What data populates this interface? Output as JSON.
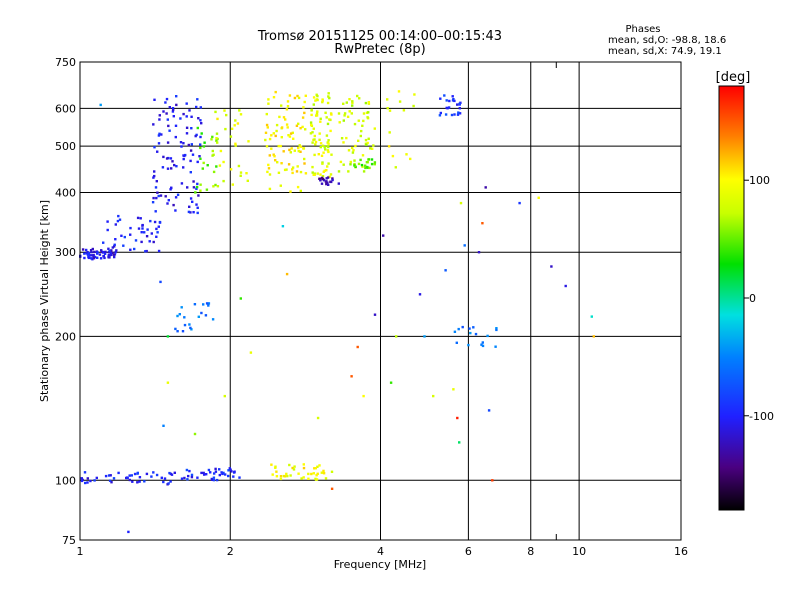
{
  "chart_data": {
    "type": "scatter",
    "title_line1": "Tromsø 20151125 00:14:00–00:15:43",
    "title_line2": "RwPretec (8p)",
    "xlabel": "Frequency [MHz]",
    "ylabel": "Stationary phase Virtual Height [km]",
    "xscale": "log",
    "yscale": "log",
    "xlim": [
      1,
      16
    ],
    "ylim": [
      75,
      750
    ],
    "xticks": [
      1,
      2,
      4,
      6,
      8,
      10,
      16
    ],
    "xtick_labels": [
      "1",
      "2",
      "4",
      "6",
      "8",
      "10",
      "16"
    ],
    "x_minor_ticks": [
      9
    ],
    "yticks": [
      75,
      100,
      200,
      300,
      400,
      500,
      600,
      750
    ],
    "ytick_labels": [
      "75",
      "100",
      "200",
      "300",
      "400",
      "500",
      "600",
      "750"
    ],
    "grid": true,
    "stats": {
      "heading": "Phases",
      "line_o": "mean, sd,O: -98.8, 18.6",
      "line_x": "mean, sd,X:  74.9, 19.1"
    },
    "colorbar": {
      "label": "[deg]",
      "range": [
        -180,
        180
      ],
      "ticks": [
        100,
        0,
        -100
      ],
      "tick_labels": [
        "100",
        "0",
        "-100"
      ]
    },
    "clusters": [
      {
        "f": [
          1.0,
          1.18
        ],
        "h": [
          290,
          305
        ],
        "phase": -110,
        "n": 60
      },
      {
        "f": [
          1.1,
          1.45
        ],
        "h": [
          300,
          360
        ],
        "phase": -100,
        "n": 45
      },
      {
        "f": [
          1.4,
          1.75
        ],
        "h": [
          360,
          640
        ],
        "phase": -105,
        "n": 110
      },
      {
        "f": [
          1.7,
          1.9
        ],
        "h": [
          400,
          560
        ],
        "phase": 50,
        "n": 25
      },
      {
        "f": [
          1.85,
          2.2
        ],
        "h": [
          410,
          620
        ],
        "phase": 90,
        "n": 30
      },
      {
        "f": [
          2.35,
          2.85
        ],
        "h": [
          400,
          650
        ],
        "phase": 100,
        "n": 90
      },
      {
        "f": [
          2.9,
          3.2
        ],
        "h": [
          430,
          650
        ],
        "phase": 85,
        "n": 80
      },
      {
        "f": [
          3.0,
          3.3
        ],
        "h": [
          415,
          430
        ],
        "phase": -130,
        "n": 20
      },
      {
        "f": [
          3.3,
          3.9
        ],
        "h": [
          440,
          640
        ],
        "phase": 80,
        "n": 60
      },
      {
        "f": [
          3.5,
          3.9
        ],
        "h": [
          450,
          470
        ],
        "phase": 50,
        "n": 20
      },
      {
        "f": [
          4.1,
          4.7
        ],
        "h": [
          450,
          660
        ],
        "phase": 90,
        "n": 14
      },
      {
        "f": [
          5.2,
          5.8
        ],
        "h": [
          580,
          640
        ],
        "phase": -90,
        "n": 25
      },
      {
        "f": [
          1.0,
          1.6
        ],
        "h": [
          98,
          104
        ],
        "phase": -100,
        "n": 45
      },
      {
        "f": [
          1.6,
          2.1
        ],
        "h": [
          100,
          106
        ],
        "phase": -95,
        "n": 40
      },
      {
        "f": [
          2.4,
          3.2
        ],
        "h": [
          100,
          108
        ],
        "phase": 95,
        "n": 40
      },
      {
        "f": [
          1.55,
          1.9
        ],
        "h": [
          205,
          235
        ],
        "phase": -60,
        "n": 20
      },
      {
        "f": [
          5.6,
          6.9
        ],
        "h": [
          190,
          210
        ],
        "phase": -60,
        "n": 16
      }
    ],
    "scattered": [
      {
        "f": 1.1,
        "h": 610,
        "phase": -40
      },
      {
        "f": 1.45,
        "h": 260,
        "phase": -80
      },
      {
        "f": 1.5,
        "h": 200,
        "phase": 20
      },
      {
        "f": 1.5,
        "h": 160,
        "phase": 90
      },
      {
        "f": 1.47,
        "h": 130,
        "phase": -50
      },
      {
        "f": 1.25,
        "h": 78,
        "phase": -100
      },
      {
        "f": 1.7,
        "h": 125,
        "phase": 60
      },
      {
        "f": 1.95,
        "h": 150,
        "phase": 80
      },
      {
        "f": 2.1,
        "h": 240,
        "phase": 40
      },
      {
        "f": 2.2,
        "h": 185,
        "phase": 90
      },
      {
        "f": 2.6,
        "h": 270,
        "phase": 120
      },
      {
        "f": 2.55,
        "h": 340,
        "phase": -20
      },
      {
        "f": 3.0,
        "h": 135,
        "phase": 80
      },
      {
        "f": 3.2,
        "h": 96,
        "phase": 150
      },
      {
        "f": 3.5,
        "h": 165,
        "phase": 150
      },
      {
        "f": 3.6,
        "h": 190,
        "phase": 150
      },
      {
        "f": 3.7,
        "h": 150,
        "phase": 100
      },
      {
        "f": 3.9,
        "h": 222,
        "phase": -120
      },
      {
        "f": 4.05,
        "h": 325,
        "phase": -130
      },
      {
        "f": 4.2,
        "h": 160,
        "phase": 40
      },
      {
        "f": 4.3,
        "h": 200,
        "phase": 70
      },
      {
        "f": 4.8,
        "h": 245,
        "phase": -110
      },
      {
        "f": 4.9,
        "h": 200,
        "phase": -40
      },
      {
        "f": 5.1,
        "h": 150,
        "phase": 80
      },
      {
        "f": 5.4,
        "h": 275,
        "phase": -70
      },
      {
        "f": 5.6,
        "h": 155,
        "phase": 90
      },
      {
        "f": 5.7,
        "h": 135,
        "phase": 170
      },
      {
        "f": 5.75,
        "h": 120,
        "phase": 10
      },
      {
        "f": 5.8,
        "h": 380,
        "phase": 80
      },
      {
        "f": 5.9,
        "h": 310,
        "phase": -60
      },
      {
        "f": 6.3,
        "h": 300,
        "phase": -120
      },
      {
        "f": 6.4,
        "h": 345,
        "phase": 150
      },
      {
        "f": 6.5,
        "h": 410,
        "phase": -130
      },
      {
        "f": 6.6,
        "h": 140,
        "phase": -80
      },
      {
        "f": 6.7,
        "h": 100,
        "phase": 160
      },
      {
        "f": 7.6,
        "h": 380,
        "phase": -90
      },
      {
        "f": 8.3,
        "h": 390,
        "phase": 100
      },
      {
        "f": 8.8,
        "h": 280,
        "phase": -120
      },
      {
        "f": 9.4,
        "h": 255,
        "phase": -110
      },
      {
        "f": 10.6,
        "h": 220,
        "phase": -10
      },
      {
        "f": 10.7,
        "h": 200,
        "phase": 120
      }
    ]
  }
}
